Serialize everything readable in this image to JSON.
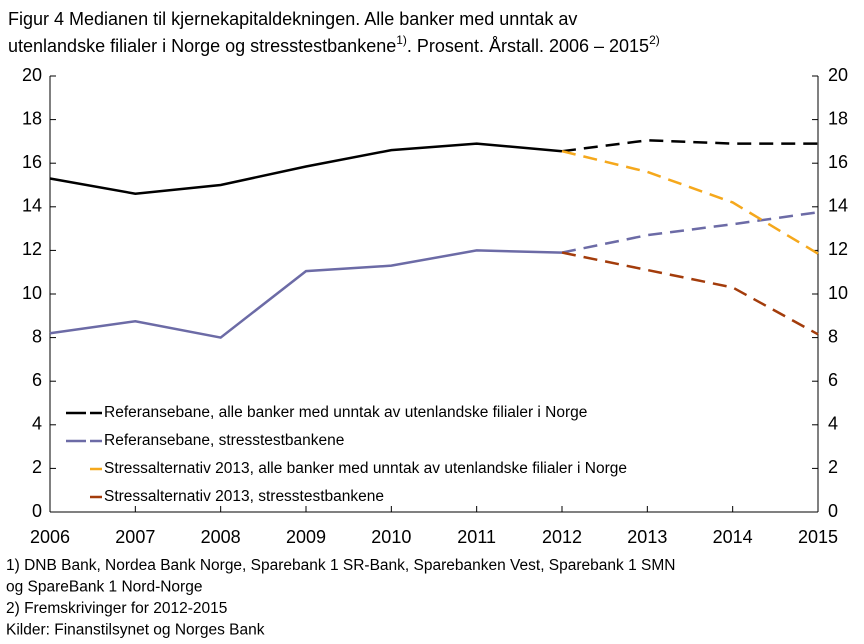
{
  "chart_data": {
    "type": "line",
    "title": {
      "line1": "Figur 4 Medianen til kjernekapitaldekningen. Alle banker med unntak av",
      "line2": [
        {
          "text": "utenlandske filialer i Norge og stresstestbankene"
        },
        {
          "text": "1)",
          "sup": true
        },
        {
          "text": ". Prosent. Årstall. 2006 – 2015"
        },
        {
          "text": "2)",
          "sup": true
        }
      ]
    },
    "x": [
      2006,
      2007,
      2008,
      2009,
      2010,
      2011,
      2012,
      2013,
      2014,
      2015
    ],
    "xlim": [
      2006,
      2015
    ],
    "xticks": [
      2006,
      2007,
      2008,
      2009,
      2010,
      2011,
      2012,
      2013,
      2014,
      2015
    ],
    "ylim": [
      0,
      20
    ],
    "yticks": [
      0,
      2,
      4,
      6,
      8,
      10,
      12,
      14,
      16,
      18,
      20
    ],
    "y2lim": [
      0,
      20
    ],
    "y2ticks": [
      0,
      2,
      4,
      6,
      8,
      10,
      12,
      14,
      16,
      18,
      20
    ],
    "projection_from": 2012,
    "series": [
      {
        "name": "Referansebane, alle banker med unntak av utenlandske filialer i Norge",
        "color": "#000000",
        "values": [
          15.3,
          14.6,
          15.0,
          15.85,
          16.6,
          16.9,
          16.55,
          17.05,
          16.9,
          16.9
        ]
      },
      {
        "name": "Referansebane, stresstestbankene",
        "color": "#6c6ba6",
        "values": [
          8.2,
          8.75,
          8.0,
          11.05,
          11.3,
          12.0,
          11.9,
          12.7,
          13.2,
          13.75
        ]
      },
      {
        "name": "Stressalternativ 2013, alle banker med unntak av utenlandske filialer i Norge",
        "color": "#f5a81c",
        "values": [
          null,
          null,
          null,
          null,
          null,
          null,
          16.55,
          15.6,
          14.2,
          11.85
        ]
      },
      {
        "name": "Stressalternativ 2013, stresstestbankene",
        "color": "#a33c0b",
        "values": [
          null,
          null,
          null,
          null,
          null,
          null,
          11.9,
          11.1,
          10.3,
          8.15
        ]
      }
    ],
    "notes": [
      "1) DNB Bank, Nordea Bank Norge, Sparebank 1 SR-Bank, Sparebanken Vest, Sparebank 1 SMN",
      "og SpareBank 1 Nord-Norge",
      "2) Fremskrivinger for 2012-2015",
      "Kilder: Finanstilsynet og Norges Bank"
    ]
  }
}
